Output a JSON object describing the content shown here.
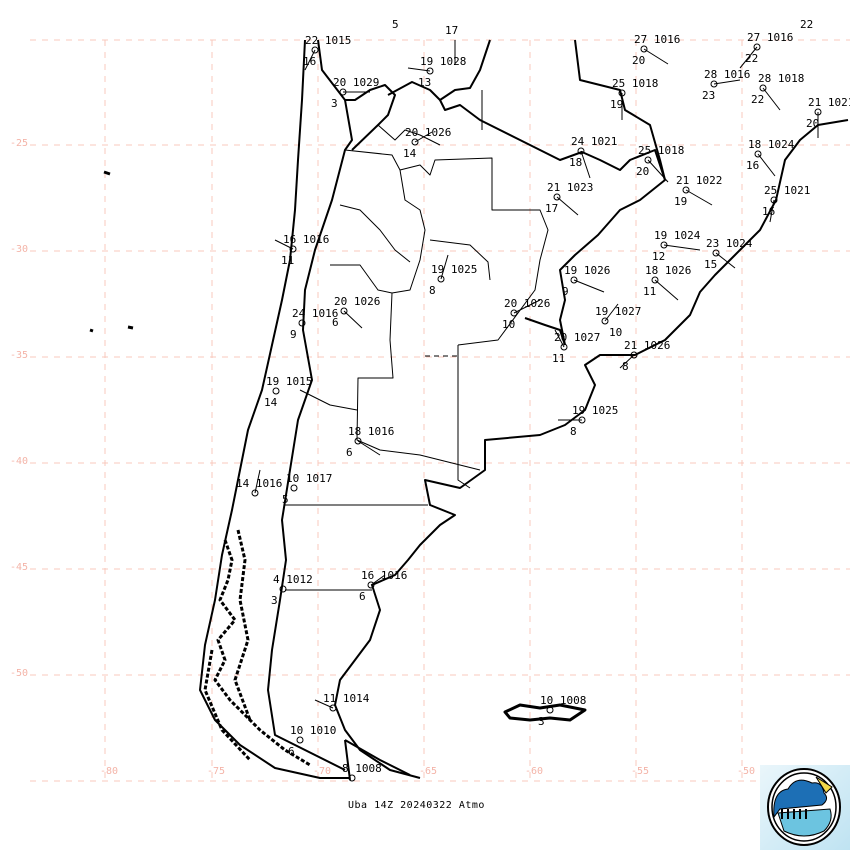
{
  "caption": "Uba 14Z 20240322 Atmo",
  "colors": {
    "grid": "#f8c8bc",
    "coastline": "#000000",
    "logo_blue": "#1d6fb5",
    "logo_water": "#6cc4e0",
    "logo_sun": "#f2d84a"
  },
  "logo": {
    "icon": "meteorology-department-logo"
  },
  "lat_labels": [
    "-25",
    "-30",
    "-35",
    "-40",
    "-45",
    "-50"
  ],
  "lon_labels": [
    "-80",
    "-75",
    "-70",
    "-65",
    "-60",
    "-55",
    "-50"
  ],
  "stations": [
    {
      "top": "22 1015",
      "bottom": "16"
    },
    {
      "top": "5",
      "bottom": ""
    },
    {
      "top": "17",
      "bottom": ""
    },
    {
      "top": "19 1028",
      "bottom": "13"
    },
    {
      "top": "20 1029",
      "bottom": "3"
    },
    {
      "top": "20 1026",
      "bottom": "14"
    },
    {
      "top": "27 1016",
      "bottom": "20"
    },
    {
      "top": "27 1016",
      "bottom": "22"
    },
    {
      "top": "28 1016",
      "bottom": "23"
    },
    {
      "top": "28 1018",
      "bottom": "22"
    },
    {
      "top": "25 1018",
      "bottom": "19"
    },
    {
      "top": "21 1021",
      "bottom": "20"
    },
    {
      "top": "24 1021",
      "bottom": "18"
    },
    {
      "top": "25 1018",
      "bottom": "20"
    },
    {
      "top": "18 1024",
      "bottom": "16"
    },
    {
      "top": "21 1022",
      "bottom": "19"
    },
    {
      "top": "21 1023",
      "bottom": "17"
    },
    {
      "top": "25 1021",
      "bottom": "16"
    },
    {
      "top": "16 1016",
      "bottom": "11"
    },
    {
      "top": "19 1024",
      "bottom": "12"
    },
    {
      "top": "23 1024",
      "bottom": "15"
    },
    {
      "top": "19 1025",
      "bottom": "8"
    },
    {
      "top": "19 1026",
      "bottom": "9"
    },
    {
      "top": "18 1026",
      "bottom": "11"
    },
    {
      "top": "20 1026",
      "bottom": "6"
    },
    {
      "top": "24 1016",
      "bottom": "9"
    },
    {
      "top": "20 1026",
      "bottom": "10"
    },
    {
      "top": "19 1027",
      "bottom": "10"
    },
    {
      "top": "20 1027",
      "bottom": "11"
    },
    {
      "top": "21 1026",
      "bottom": "8"
    },
    {
      "top": "19 1015",
      "bottom": "14"
    },
    {
      "top": "19 1025",
      "bottom": "8"
    },
    {
      "top": "18 1016",
      "bottom": "6"
    },
    {
      "top": "14 1016",
      "bottom": ""
    },
    {
      "top": "10 1017",
      "bottom": "5"
    },
    {
      "top": "4 1012",
      "bottom": "3"
    },
    {
      "top": "16 1016",
      "bottom": "6"
    },
    {
      "top": "11 1014",
      "bottom": ""
    },
    {
      "top": "10 1010",
      "bottom": "6"
    },
    {
      "top": "8 1008",
      "bottom": ""
    },
    {
      "top": "10 1008",
      "bottom": "3"
    },
    {
      "top": "22",
      "bottom": ""
    }
  ]
}
